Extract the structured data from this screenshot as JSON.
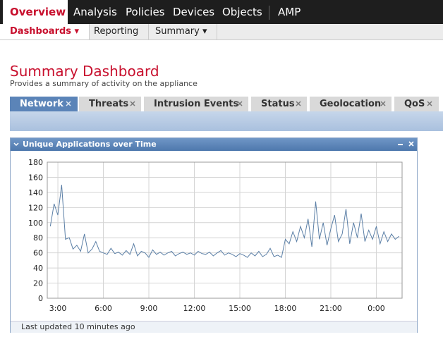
{
  "nav": {
    "items": [
      "Overview",
      "Analysis",
      "Policies",
      "Devices",
      "Objects",
      "AMP"
    ]
  },
  "subnav": {
    "items": [
      "Dashboards ▾",
      "Reporting",
      "Summary ▾"
    ]
  },
  "header": {
    "title": "Summary Dashboard",
    "subtitle": "Provides a summary of activity on the appliance"
  },
  "tabs": [
    "Network",
    "Threats",
    "Intrusion Events",
    "Status",
    "Geolocation",
    "QoS"
  ],
  "widget": {
    "title": "Unique Applications over Time",
    "footer": "Last updated 10 minutes ago"
  },
  "chart_data": {
    "type": "line",
    "color": "#5b7fa6",
    "grid": true,
    "xlim": [
      2.3,
      25.7
    ],
    "ylim": [
      0,
      180
    ],
    "yticks": [
      0,
      20,
      40,
      60,
      80,
      100,
      120,
      140,
      160,
      180
    ],
    "xticks": [
      {
        "value": 3,
        "label": "3:00"
      },
      {
        "value": 6,
        "label": "6:00"
      },
      {
        "value": 9,
        "label": "9:00"
      },
      {
        "value": 12,
        "label": "12:00"
      },
      {
        "value": 15,
        "label": "15:00"
      },
      {
        "value": 18,
        "label": "18:00"
      },
      {
        "value": 21,
        "label": "21:00"
      },
      {
        "value": 24,
        "label": "0:00"
      }
    ],
    "x": [
      2.5,
      2.75,
      3,
      3.25,
      3.5,
      3.75,
      4,
      4.25,
      4.5,
      4.75,
      5,
      5.25,
      5.5,
      5.75,
      6,
      6.25,
      6.5,
      6.75,
      7,
      7.25,
      7.5,
      7.75,
      8,
      8.25,
      8.5,
      8.75,
      9,
      9.25,
      9.5,
      9.75,
      10,
      10.25,
      10.5,
      10.75,
      11,
      11.25,
      11.5,
      11.75,
      12,
      12.25,
      12.5,
      12.75,
      13,
      13.25,
      13.5,
      13.75,
      14,
      14.25,
      14.5,
      14.75,
      15,
      15.25,
      15.5,
      15.75,
      16,
      16.25,
      16.5,
      16.75,
      17,
      17.25,
      17.5,
      17.75,
      18,
      18.25,
      18.5,
      18.75,
      19,
      19.25,
      19.5,
      19.75,
      20,
      20.25,
      20.5,
      20.75,
      21,
      21.25,
      21.5,
      21.75,
      22,
      22.25,
      22.5,
      22.75,
      23,
      23.25,
      23.5,
      23.75,
      24,
      24.25,
      24.5,
      24.75,
      25,
      25.25,
      25.5
    ],
    "values": [
      95,
      125,
      110,
      150,
      78,
      80,
      65,
      70,
      62,
      85,
      60,
      65,
      75,
      62,
      60,
      58,
      66,
      59,
      61,
      57,
      63,
      58,
      72,
      56,
      62,
      60,
      54,
      64,
      58,
      61,
      57,
      60,
      62,
      56,
      59,
      61,
      58,
      60,
      57,
      62,
      59,
      58,
      61,
      56,
      60,
      63,
      57,
      60,
      58,
      55,
      59,
      57,
      54,
      60,
      56,
      62,
      55,
      58,
      66,
      55,
      57,
      54,
      78,
      72,
      88,
      75,
      95,
      80,
      105,
      68,
      128,
      78,
      100,
      70,
      92,
      110,
      75,
      85,
      118,
      72,
      100,
      80,
      112,
      75,
      90,
      78,
      95,
      72,
      88,
      75,
      85,
      78,
      82
    ]
  }
}
